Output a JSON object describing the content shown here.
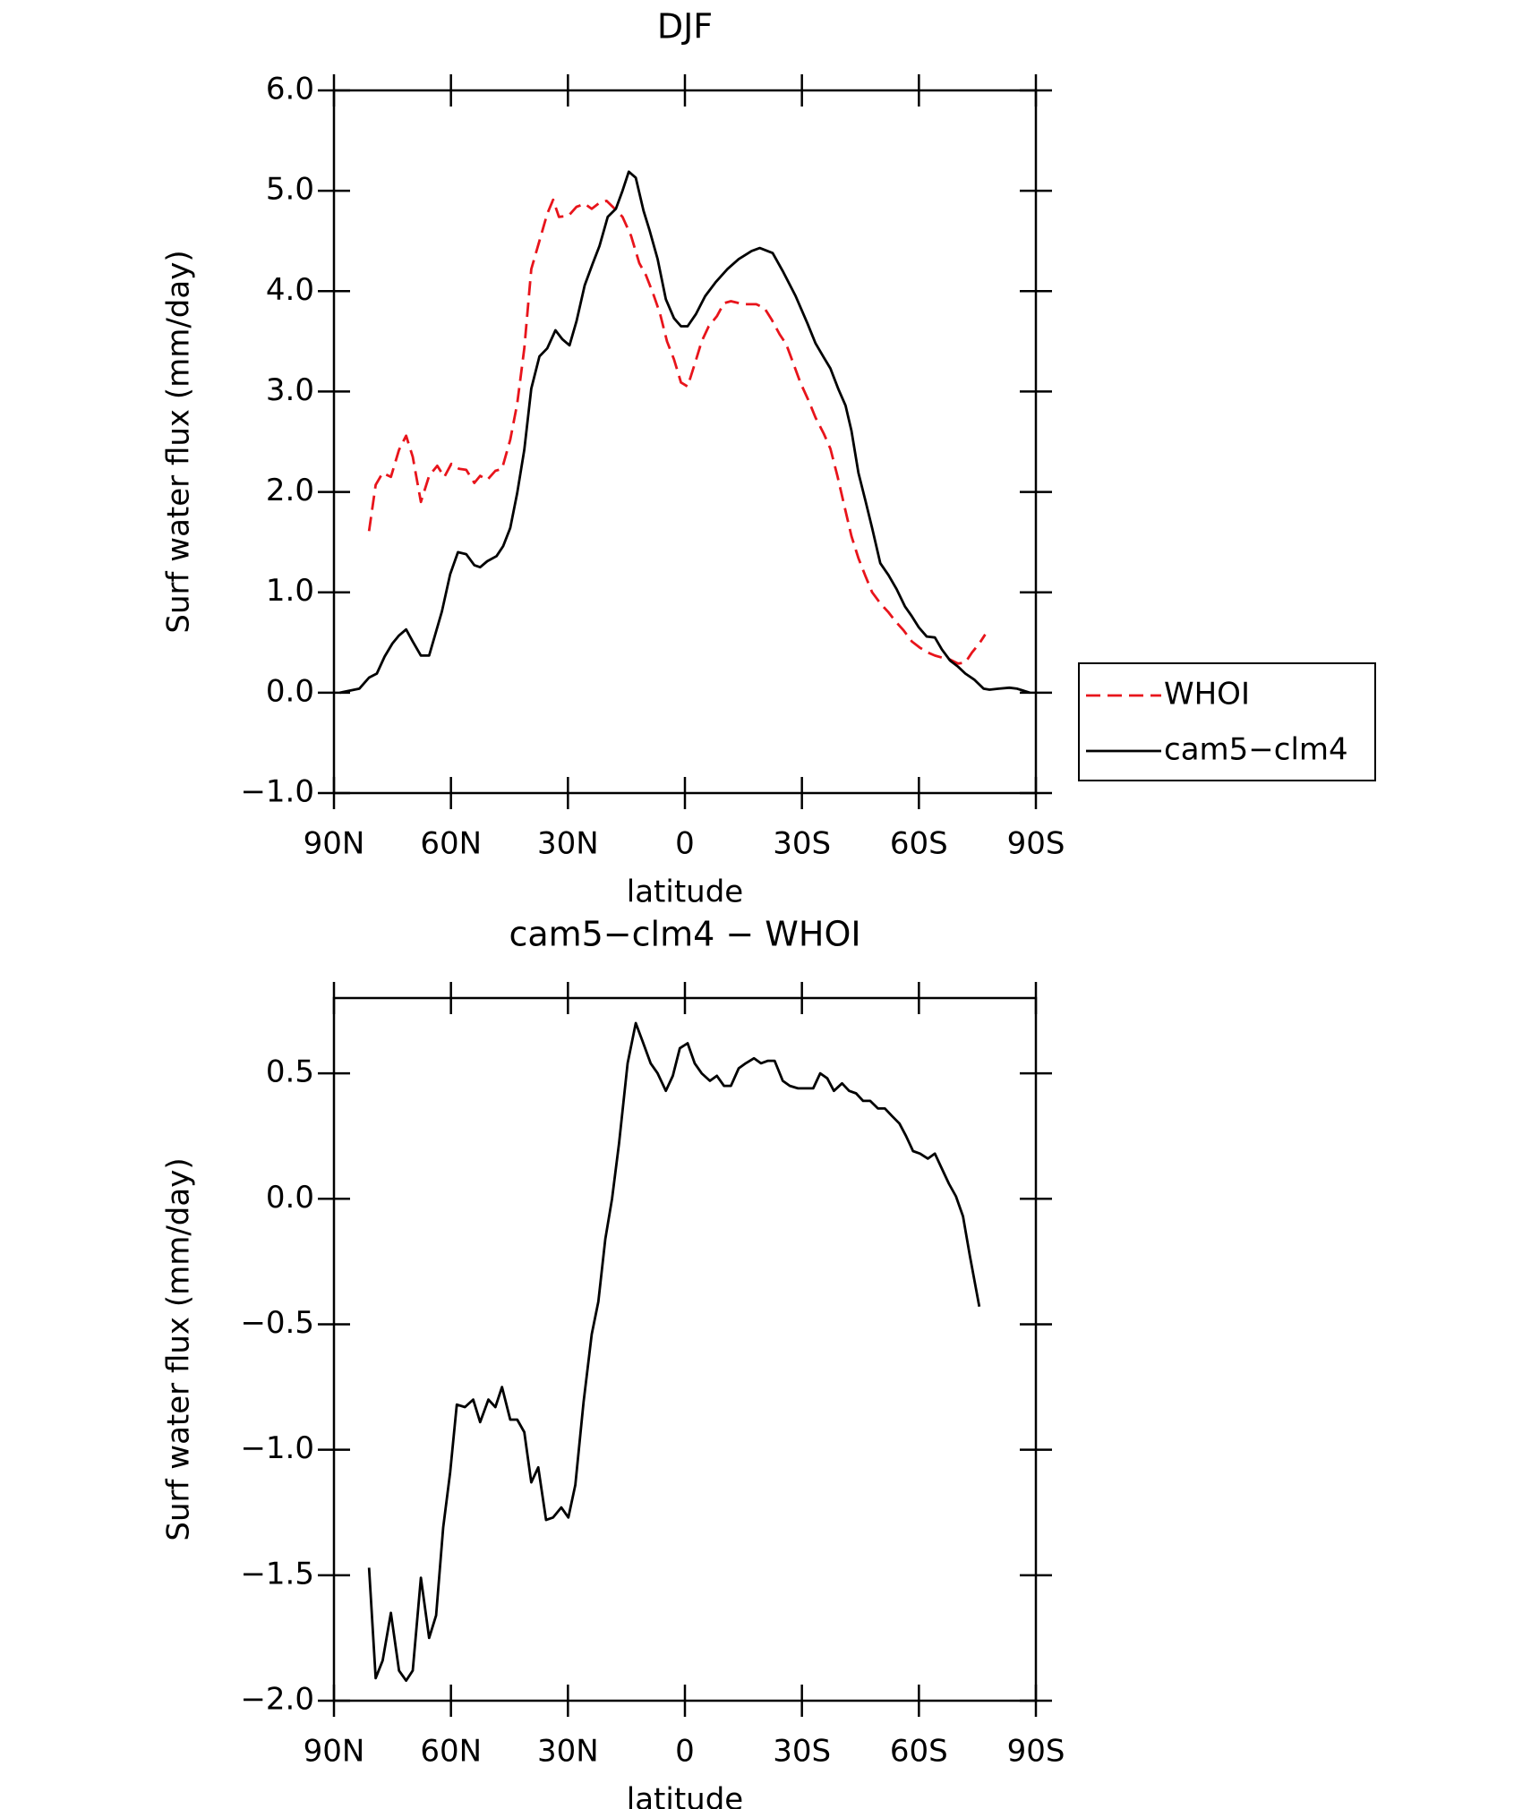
{
  "chart_data": [
    {
      "type": "line",
      "title": "DJF",
      "xlabel": "latitude",
      "ylabel": "Surf water flux (mm/day)",
      "xlim": [
        90,
        -90
      ],
      "xticks": [
        {
          "value": 90,
          "label": "90N"
        },
        {
          "value": 60,
          "label": "60N"
        },
        {
          "value": 30,
          "label": "30N"
        },
        0,
        {
          "value": -30,
          "label": "30S"
        },
        {
          "value": -60,
          "label": "60S"
        },
        {
          "value": -90,
          "label": "90S"
        }
      ],
      "ylim": [
        -1,
        6
      ],
      "yticks": [
        {
          "value": -1,
          "label": "−1.0"
        },
        {
          "value": 0,
          "label": "0.0"
        },
        {
          "value": 1,
          "label": "1.0"
        },
        {
          "value": 2,
          "label": "2.0"
        },
        {
          "value": 3,
          "label": "3.0"
        },
        {
          "value": 4,
          "label": "4.0"
        },
        {
          "value": 5,
          "label": "5.0"
        },
        {
          "value": 6,
          "label": "6.0"
        }
      ],
      "legend": "right",
      "series": [
        {
          "name": "WHOI",
          "color": "#e8141b",
          "dash": true,
          "x": [
            81,
            79.3,
            77.5,
            75.4,
            73.3,
            71.5,
            69.8,
            67.7,
            65.6,
            63.5,
            61.7,
            59.9,
            57.9,
            56.1,
            54,
            52.5,
            50.7,
            48.6,
            46.9,
            44.8,
            43,
            41.2,
            39.4,
            37.3,
            35.3,
            33.8,
            32.3,
            29.9,
            27.8,
            25.7,
            23.9,
            21.9,
            20.1,
            18,
            16,
            13.8,
            11.7,
            10,
            8.2,
            6.4,
            4.6,
            2.8,
            1,
            -0.7,
            -2.8,
            -4.3,
            -6.1,
            -8.2,
            -10,
            -11.8,
            -15,
            -18.3,
            -20.4,
            -22.2,
            -24.3,
            -26,
            -27.8,
            -29.6,
            -31.7,
            -33.5,
            -35.6,
            -37.3,
            -39.1,
            -40.9,
            -42.7,
            -44.5,
            -46.3,
            -48,
            -50.1,
            -52.2,
            -54,
            -56.1,
            -58.2,
            -60.2,
            -62.3,
            -64.1,
            -65.9,
            -68,
            -70,
            -71.9,
            -73.6,
            -75.5,
            -77
          ],
          "values": [
            1.61,
            2.07,
            2.19,
            2.15,
            2.42,
            2.56,
            2.35,
            1.9,
            2.16,
            2.26,
            2.15,
            2.28,
            2.23,
            2.22,
            2.09,
            2.16,
            2.12,
            2.21,
            2.23,
            2.52,
            2.88,
            3.43,
            4.22,
            4.5,
            4.77,
            4.91,
            4.74,
            4.75,
            4.84,
            4.87,
            4.82,
            4.88,
            4.9,
            4.82,
            4.74,
            4.55,
            4.28,
            4.16,
            3.98,
            3.78,
            3.5,
            3.32,
            3.09,
            3.05,
            3.31,
            3.5,
            3.65,
            3.75,
            3.88,
            3.9,
            3.87,
            3.87,
            3.83,
            3.72,
            3.57,
            3.47,
            3.28,
            3.09,
            2.91,
            2.74,
            2.58,
            2.43,
            2.16,
            1.86,
            1.56,
            1.34,
            1.16,
            1.0,
            0.89,
            0.8,
            0.71,
            0.62,
            0.51,
            0.45,
            0.4,
            0.37,
            0.35,
            0.33,
            0.29,
            0.3,
            0.4,
            0.49,
            0.58
          ]
        },
        {
          "name": "cam5−clm4",
          "color": "#000000",
          "dash": false,
          "x": [
            88.5,
            83.5,
            81,
            79,
            77,
            75,
            73.3,
            71.5,
            69.8,
            67.7,
            65.6,
            62.3,
            60.2,
            58.2,
            56.1,
            54,
            52.5,
            50.7,
            48.3,
            46.6,
            44.8,
            43,
            41.2,
            39.4,
            37.3,
            35.3,
            33.2,
            31.4,
            29.6,
            27.8,
            25.7,
            23.7,
            21.9,
            19.8,
            17.7,
            16,
            14.4,
            12.6,
            10.6,
            9.1,
            7,
            4.9,
            2.8,
            1,
            -0.7,
            -2.8,
            -5.2,
            -7.9,
            -10.9,
            -13.8,
            -17.1,
            -19.2,
            -22.5,
            -25.1,
            -28.4,
            -31.4,
            -33.5,
            -35.6,
            -37.3,
            -39.4,
            -41.2,
            -42.7,
            -44.5,
            -46.3,
            -48,
            -50.1,
            -52.2,
            -54.3,
            -56.4,
            -58.2,
            -60,
            -62,
            -64.1,
            -65.9,
            -68,
            -70,
            -71.9,
            -74.2,
            -76.6,
            -78.1,
            -80.5,
            -83.2,
            -85.2,
            -88.5
          ],
          "values": [
            0.0,
            0.04,
            0.15,
            0.19,
            0.36,
            0.49,
            0.57,
            0.63,
            0.51,
            0.37,
            0.37,
            0.81,
            1.18,
            1.4,
            1.38,
            1.27,
            1.25,
            1.31,
            1.36,
            1.46,
            1.64,
            1.99,
            2.42,
            3.03,
            3.35,
            3.43,
            3.61,
            3.52,
            3.46,
            3.7,
            4.06,
            4.27,
            4.45,
            4.74,
            4.82,
            5.0,
            5.19,
            5.13,
            4.8,
            4.61,
            4.32,
            3.92,
            3.73,
            3.65,
            3.65,
            3.77,
            3.95,
            4.09,
            4.22,
            4.32,
            4.4,
            4.43,
            4.38,
            4.2,
            3.95,
            3.68,
            3.48,
            3.34,
            3.23,
            3.02,
            2.86,
            2.61,
            2.19,
            1.91,
            1.64,
            1.29,
            1.17,
            1.03,
            0.86,
            0.76,
            0.65,
            0.56,
            0.55,
            0.43,
            0.32,
            0.26,
            0.19,
            0.13,
            0.04,
            0.03,
            0.04,
            0.05,
            0.04,
            0.0
          ]
        }
      ]
    },
    {
      "type": "line",
      "title": "cam5−clm4 − WHOI",
      "xlabel": "latitude",
      "ylabel": "Surf water flux (mm/day)",
      "xlim": [
        90,
        -90
      ],
      "xticks": [
        {
          "value": 90,
          "label": "90N"
        },
        {
          "value": 60,
          "label": "60N"
        },
        {
          "value": 30,
          "label": "30N"
        },
        0,
        {
          "value": -30,
          "label": "30S"
        },
        {
          "value": -60,
          "label": "60S"
        },
        {
          "value": -90,
          "label": "90S"
        }
      ],
      "ylim": [
        -2,
        0.8
      ],
      "yticks": [
        {
          "value": -2,
          "label": "−2.0"
        },
        {
          "value": -1.5,
          "label": "−1.5"
        },
        {
          "value": -1,
          "label": "−1.0"
        },
        {
          "value": -0.5,
          "label": "−0.5"
        },
        {
          "value": 0,
          "label": "0.0"
        },
        0.5
      ],
      "series": [
        {
          "color": "#000000",
          "dash": false,
          "x": [
            81,
            79.3,
            77.5,
            75.4,
            73.3,
            71.5,
            69.8,
            67.7,
            65.6,
            63.8,
            62,
            60.2,
            58.5,
            56.4,
            54.3,
            52.5,
            50.4,
            48.6,
            46.9,
            44.8,
            43,
            41.2,
            39.4,
            37.6,
            35.6,
            33.8,
            31.7,
            29.9,
            28.1,
            26,
            23.9,
            22.2,
            20.4,
            18.7,
            16.9,
            14.7,
            12.6,
            10.9,
            8.8,
            7,
            4.9,
            3.1,
            1.3,
            -0.7,
            -2.5,
            -4.3,
            -6.4,
            -8.2,
            -10,
            -11.8,
            -13.8,
            -15.6,
            -17.7,
            -19.5,
            -21.3,
            -23,
            -25.1,
            -26.9,
            -29,
            -30.8,
            -32.9,
            -34.7,
            -36.5,
            -38.2,
            -40.3,
            -42.1,
            -43.9,
            -45.7,
            -47.5,
            -49.5,
            -51.3,
            -53.1,
            -55,
            -56.7,
            -58.5,
            -60.3,
            -62.3,
            -64.1,
            -65.9,
            -67.7,
            -69.5,
            -71.3,
            -73.1,
            -75.5
          ],
          "values": [
            -1.47,
            -1.91,
            -1.84,
            -1.65,
            -1.88,
            -1.92,
            -1.88,
            -1.51,
            -1.75,
            -1.66,
            -1.31,
            -1.09,
            -0.82,
            -0.83,
            -0.8,
            -0.89,
            -0.8,
            -0.83,
            -0.75,
            -0.88,
            -0.88,
            -0.93,
            -1.13,
            -1.07,
            -1.28,
            -1.27,
            -1.23,
            -1.27,
            -1.14,
            -0.81,
            -0.54,
            -0.41,
            -0.16,
            0.0,
            0.22,
            0.54,
            0.7,
            0.63,
            0.54,
            0.5,
            0.43,
            0.49,
            0.6,
            0.62,
            0.54,
            0.5,
            0.47,
            0.49,
            0.45,
            0.45,
            0.52,
            0.54,
            0.56,
            0.54,
            0.55,
            0.55,
            0.47,
            0.45,
            0.44,
            0.44,
            0.44,
            0.5,
            0.48,
            0.43,
            0.46,
            0.43,
            0.42,
            0.39,
            0.39,
            0.36,
            0.36,
            0.33,
            0.3,
            0.25,
            0.19,
            0.18,
            0.16,
            0.18,
            0.12,
            0.06,
            0.01,
            -0.07,
            -0.23,
            -0.43
          ]
        }
      ]
    }
  ]
}
